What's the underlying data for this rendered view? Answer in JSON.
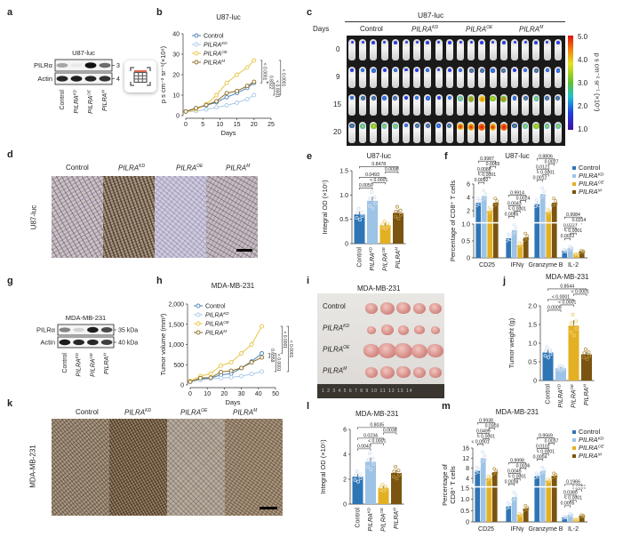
{
  "groups": [
    {
      "gene": "Control",
      "sup": ""
    },
    {
      "gene": "PILRA",
      "sup": "KD"
    },
    {
      "gene": "PILRA",
      "sup": "OE"
    },
    {
      "gene": "PILRA",
      "sup": "M"
    }
  ],
  "colors": {
    "bars": [
      "#2e75b6",
      "#9dc3e6",
      "#e3b024",
      "#7a5410"
    ],
    "lines": [
      "#4a80b4",
      "#a9c9e8",
      "#e8c444",
      "#8a6a22"
    ]
  },
  "panel_labels": {
    "a": "a",
    "b": "b",
    "c": "c",
    "d": "d",
    "e": "e",
    "f": "f",
    "g": "g",
    "h": "h",
    "i": "i",
    "j": "j",
    "k": "k",
    "l": "l",
    "m": "m"
  },
  "panel_a": {
    "title": "U87-luc",
    "rows": [
      "PILRα",
      "Actin"
    ],
    "markers": [
      "3",
      "4"
    ],
    "band_intensity": {
      "PILRα": [
        0.35,
        0.05,
        1.0,
        0.6
      ],
      "Actin": [
        0.9,
        0.95,
        0.9,
        0.85
      ]
    }
  },
  "panel_g": {
    "title": "MDA-MB-231",
    "rows": [
      "PILRα",
      "Actin"
    ],
    "markers": [
      "35 kDa",
      "40 kDa"
    ],
    "band_intensity": {
      "PILRα": [
        0.5,
        0.15,
        0.95,
        0.75
      ],
      "Actin": [
        0.95,
        0.9,
        0.9,
        0.8
      ]
    }
  },
  "panel_c": {
    "title": "U87-luc",
    "row_header": "Days",
    "days": [
      "0",
      "9",
      "15",
      "20"
    ],
    "colorbar": {
      "ticks": [
        "5.0",
        "4.0",
        "3.0",
        "2.0",
        "1.0"
      ],
      "label": "p s cm⁻² sr⁻¹ (×10⁷)"
    }
  },
  "panel_d": {
    "side_label": "U87-luc"
  },
  "panel_i": {
    "title": "MDA-MB-231",
    "ruler": "1 2 3 4 5 6 7 8 9 10 11 12 13 14"
  },
  "panel_k": {
    "side_label": "MDA-MB-231"
  },
  "widget": {
    "icon": "table-icon"
  },
  "chart_data": [
    {
      "id": "b",
      "type": "line",
      "title": "U87-luc",
      "xlabel": "Days",
      "ylabel": "p s cm⁻² sr⁻¹(×10⁸)",
      "xlim": [
        0,
        25
      ],
      "ylim": [
        0,
        40
      ],
      "xticks": [
        0,
        5,
        10,
        15,
        20,
        25
      ],
      "yticks": [
        0,
        10,
        20,
        30,
        40
      ],
      "yticklabels": [
        "0",
        "10",
        "20",
        "30",
        "40"
      ],
      "x": [
        0,
        3,
        6,
        9,
        12,
        15,
        18,
        20
      ],
      "series": [
        {
          "group": 0,
          "values": [
            2,
            3.6,
            5,
            6.5,
            9,
            11,
            13.5,
            16
          ]
        },
        {
          "group": 1,
          "values": [
            2,
            2.2,
            3,
            4,
            5,
            6.3,
            8,
            10
          ]
        },
        {
          "group": 2,
          "values": [
            2,
            3,
            5.5,
            10,
            16,
            20,
            23.5,
            27
          ]
        },
        {
          "group": 3,
          "values": [
            2,
            3.6,
            5.2,
            7,
            11,
            12,
            14.5,
            16.5
          ]
        }
      ],
      "comparisons": [
        {
          "pair": [
            2,
            0
          ],
          "p": "< 0.0001"
        },
        {
          "pair": [
            3,
            0
          ],
          "p": "0.8322"
        },
        {
          "pair": [
            1,
            0
          ],
          "p": "< 0.0001"
        },
        {
          "pair": [
            2,
            1
          ],
          "p": "< 0.0001"
        }
      ]
    },
    {
      "id": "h",
      "type": "line",
      "title": "MDA-MB-231",
      "xlabel": "Days",
      "ylabel": "Tumor volume (mm³)",
      "xlim": [
        0,
        50
      ],
      "ylim": [
        0,
        2000
      ],
      "xticks": [
        0,
        10,
        20,
        30,
        40,
        50
      ],
      "yticks": [
        0,
        500,
        1000,
        1500,
        2000
      ],
      "yticklabels": [
        "0",
        "500",
        "1,000",
        "1,500",
        "2,000"
      ],
      "x": [
        0,
        6,
        12,
        18,
        24,
        30,
        36,
        42
      ],
      "series": [
        {
          "group": 0,
          "values": [
            80,
            150,
            170,
            250,
            280,
            420,
            580,
            780
          ]
        },
        {
          "group": 1,
          "values": [
            80,
            120,
            150,
            170,
            190,
            220,
            270,
            330
          ]
        },
        {
          "group": 2,
          "values": [
            100,
            220,
            280,
            480,
            560,
            780,
            1000,
            1450
          ]
        },
        {
          "group": 3,
          "values": [
            80,
            170,
            180,
            320,
            350,
            420,
            560,
            680
          ]
        }
      ],
      "comparisons": [
        {
          "pair": [
            3,
            0
          ],
          "p": "0.6559"
        },
        {
          "pair": [
            1,
            0
          ],
          "p": "< 0.0001"
        },
        {
          "pair": [
            2,
            0
          ],
          "p": "< 0.0001"
        },
        {
          "pair": [
            2,
            1
          ],
          "p": "< 0.0001"
        }
      ]
    },
    {
      "id": "e",
      "type": "bar",
      "title": "U87-luc",
      "ylabel": "Integral OD (×10⁵)",
      "ylim": [
        0,
        1.5
      ],
      "yticks": [
        0,
        0.5,
        1.0,
        1.5
      ],
      "yticklabels": [
        "0",
        "0.5",
        "1.0",
        "1.5"
      ],
      "values": [
        0.6,
        0.88,
        0.38,
        0.63
      ],
      "comparisons": [
        {
          "pair": [
            0,
            1
          ],
          "tier": 0,
          "p": "0.0050"
        },
        {
          "pair": [
            1,
            2
          ],
          "tier": 0,
          "p": "< 0.0001"
        },
        {
          "pair": [
            0,
            2
          ],
          "tier": 1,
          "p": "0.0493"
        },
        {
          "pair": [
            2,
            3
          ],
          "tier": 1,
          "p": "0.0098"
        },
        {
          "pair": [
            0,
            3
          ],
          "tier": 2,
          "p": "0.8478"
        }
      ]
    },
    {
      "id": "j",
      "type": "bar",
      "title": "MDA-MB-231",
      "ylabel": "Tumor weight (g)",
      "ylim": [
        0,
        2
      ],
      "yticks": [
        0,
        0.5,
        1.0,
        1.5,
        2.0
      ],
      "yticklabels": [
        "0",
        "0.5",
        "1.0",
        "1.5",
        "2.0"
      ],
      "values": [
        0.75,
        0.33,
        1.47,
        0.7
      ],
      "comparisons": [
        {
          "pair": [
            0,
            1
          ],
          "tier": 0,
          "p": "0.0005"
        },
        {
          "pair": [
            1,
            2
          ],
          "tier": 0,
          "p": "< 0.0001"
        },
        {
          "pair": [
            0,
            2
          ],
          "tier": 1,
          "p": "< 0.0001"
        },
        {
          "pair": [
            2,
            3
          ],
          "tier": 1,
          "p": "< 0.0001"
        },
        {
          "pair": [
            0,
            3
          ],
          "tier": 2,
          "p": "0.8544"
        }
      ]
    },
    {
      "id": "l",
      "type": "bar",
      "title": "MDA-MB-231",
      "ylabel": "Integral OD (×10⁵)",
      "ylim": [
        0,
        6
      ],
      "yticks": [
        0,
        2,
        4,
        6
      ],
      "yticklabels": [
        "0",
        "2",
        "4",
        "6"
      ],
      "values": [
        2.2,
        3.4,
        1.3,
        2.5
      ],
      "comparisons": [
        {
          "pair": [
            0,
            1
          ],
          "tier": 0,
          "p": "0.0043"
        },
        {
          "pair": [
            1,
            2
          ],
          "tier": 0,
          "p": "< 0.0001"
        },
        {
          "pair": [
            0,
            2
          ],
          "tier": 1,
          "p": "0.0234"
        },
        {
          "pair": [
            2,
            3
          ],
          "tier": 1,
          "p": "0.0038"
        },
        {
          "pair": [
            0,
            3
          ],
          "tier": 2,
          "p": "0.8035"
        }
      ]
    },
    {
      "id": "f",
      "type": "bar",
      "title": "U87-luc",
      "ylabel": "Percentage of CD8⁺ T cells",
      "ylabel_lines": [],
      "categories": [
        "CD25",
        "IFNγ",
        "Granzyme B",
        "IL-2"
      ],
      "lower": {
        "range": [
          0,
          1.0
        ],
        "ticks": [
          0,
          0.5,
          1.0
        ],
        "ticklabels": [
          "0",
          "0.5",
          "1.0"
        ]
      },
      "upper": {
        "range": [
          1,
          6
        ],
        "ticks": [
          2,
          4,
          6
        ],
        "ticklabels": [
          "2",
          "4",
          "6"
        ]
      },
      "values": [
        [
          3.2,
          4.2,
          2.0,
          3.2
        ],
        [
          0.58,
          0.82,
          0.38,
          0.6
        ],
        [
          3.0,
          4.5,
          1.8,
          3.2
        ],
        [
          0.2,
          0.28,
          0.1,
          0.18
        ]
      ],
      "comparisons": [
        [
          {
            "pair": [
              0,
              1
            ],
            "tier": 0,
            "p": "0.0092"
          },
          {
            "pair": [
              1,
              2
            ],
            "tier": 0,
            "p": "< 0.0001"
          },
          {
            "pair": [
              0,
              2
            ],
            "tier": 1,
            "p": "0.0088"
          },
          {
            "pair": [
              2,
              3
            ],
            "tier": 1,
            "p": "0.0065"
          },
          {
            "pair": [
              0,
              3
            ],
            "tier": 2,
            "p": "0.9987"
          }
        ],
        [
          {
            "pair": [
              0,
              1
            ],
            "tier": 0,
            "p": "0.0085"
          },
          {
            "pair": [
              1,
              2
            ],
            "tier": 0,
            "p": "< 0.0001"
          },
          {
            "pair": [
              0,
              2
            ],
            "tier": 1,
            "p": "0.0043"
          },
          {
            "pair": [
              2,
              3
            ],
            "tier": 1,
            "p": "0.0024"
          },
          {
            "pair": [
              0,
              3
            ],
            "tier": 2,
            "p": "0.9914"
          }
        ],
        [
          {
            "pair": [
              0,
              1
            ],
            "tier": 0,
            "p": "0.0012"
          },
          {
            "pair": [
              1,
              2
            ],
            "tier": 0,
            "p": "< 0.0001"
          },
          {
            "pair": [
              0,
              2
            ],
            "tier": 1,
            "p": "0.0121"
          },
          {
            "pair": [
              2,
              3
            ],
            "tier": 1,
            "p": "0.0027"
          },
          {
            "pair": [
              0,
              3
            ],
            "tier": 2,
            "p": "0.8806"
          }
        ],
        [
          {
            "pair": [
              0,
              1
            ],
            "tier": 0,
            "p": "0.0022"
          },
          {
            "pair": [
              1,
              2
            ],
            "tier": 0,
            "p": "< 0.0001"
          },
          {
            "pair": [
              0,
              2
            ],
            "tier": 1,
            "p": "0.0227"
          },
          {
            "pair": [
              2,
              3
            ],
            "tier": 1,
            "p": "0.0314"
          },
          {
            "pair": [
              0,
              3
            ],
            "tier": 2,
            "p": "0.9984"
          }
        ]
      ]
    },
    {
      "id": "m",
      "type": "bar",
      "title": "MDA-MB-231",
      "ylabel_lines": [
        "Percentage of",
        "CD8⁺ T cells"
      ],
      "categories": [
        "CD25",
        "IFNγ",
        "Granzyme B",
        "IL-2"
      ],
      "lower": {
        "range": [
          0,
          1.5
        ],
        "ticks": [
          0,
          0.5,
          1.0,
          1.5
        ],
        "ticklabels": [
          "0",
          "0.5",
          "1.0",
          "1.5"
        ]
      },
      "upper": {
        "range": [
          2,
          16
        ],
        "ticks": [
          4,
          8,
          12,
          16
        ],
        "ticklabels": [
          "4",
          "8",
          "12",
          "16"
        ]
      },
      "values": [
        [
          7,
          12,
          4,
          6.5
        ],
        [
          0.7,
          1.1,
          0.3,
          0.6
        ],
        [
          5,
          7,
          3,
          5
        ],
        [
          0.2,
          0.3,
          0.1,
          0.25
        ]
      ],
      "comparisons": [
        [
          {
            "pair": [
              0,
              1
            ],
            "tier": 0,
            "p": "< 0.0001"
          },
          {
            "pair": [
              1,
              2
            ],
            "tier": 0,
            "p": "< 0.0001"
          },
          {
            "pair": [
              0,
              2
            ],
            "tier": 1,
            "p": "0.0499"
          },
          {
            "pair": [
              2,
              3
            ],
            "tier": 1,
            "p": "0.0303"
          },
          {
            "pair": [
              0,
              3
            ],
            "tier": 2,
            "p": "0.9938"
          }
        ],
        [
          {
            "pair": [
              0,
              1
            ],
            "tier": 0,
            "p": "0.0038"
          },
          {
            "pair": [
              1,
              2
            ],
            "tier": 0,
            "p": "< 0.0001"
          },
          {
            "pair": [
              0,
              2
            ],
            "tier": 1,
            "p": "0.0045"
          },
          {
            "pair": [
              2,
              3
            ],
            "tier": 1,
            "p": "0.0036"
          },
          {
            "pair": [
              0,
              3
            ],
            "tier": 2,
            "p": "0.9998"
          }
        ],
        [
          {
            "pair": [
              0,
              1
            ],
            "tier": 0,
            "p": "0.0004"
          },
          {
            "pair": [
              1,
              2
            ],
            "tier": 0,
            "p": "< 0.0001"
          },
          {
            "pair": [
              0,
              2
            ],
            "tier": 1,
            "p": "0.0102"
          },
          {
            "pair": [
              2,
              3
            ],
            "tier": 1,
            "p": "0.0037"
          },
          {
            "pair": [
              0,
              3
            ],
            "tier": 2,
            "p": "0.9569"
          }
        ],
        [
          {
            "pair": [
              0,
              1
            ],
            "tier": 0,
            "p": "0.0005"
          },
          {
            "pair": [
              1,
              2
            ],
            "tier": 0,
            "p": "< 0.0001"
          },
          {
            "pair": [
              0,
              2
            ],
            "tier": 1,
            "p": "0.0380"
          },
          {
            "pair": [
              2,
              3
            ],
            "tier": 1,
            "p": "0.0006"
          },
          {
            "pair": [
              0,
              3
            ],
            "tier": 2,
            "p": "0.1966"
          }
        ]
      ]
    }
  ]
}
